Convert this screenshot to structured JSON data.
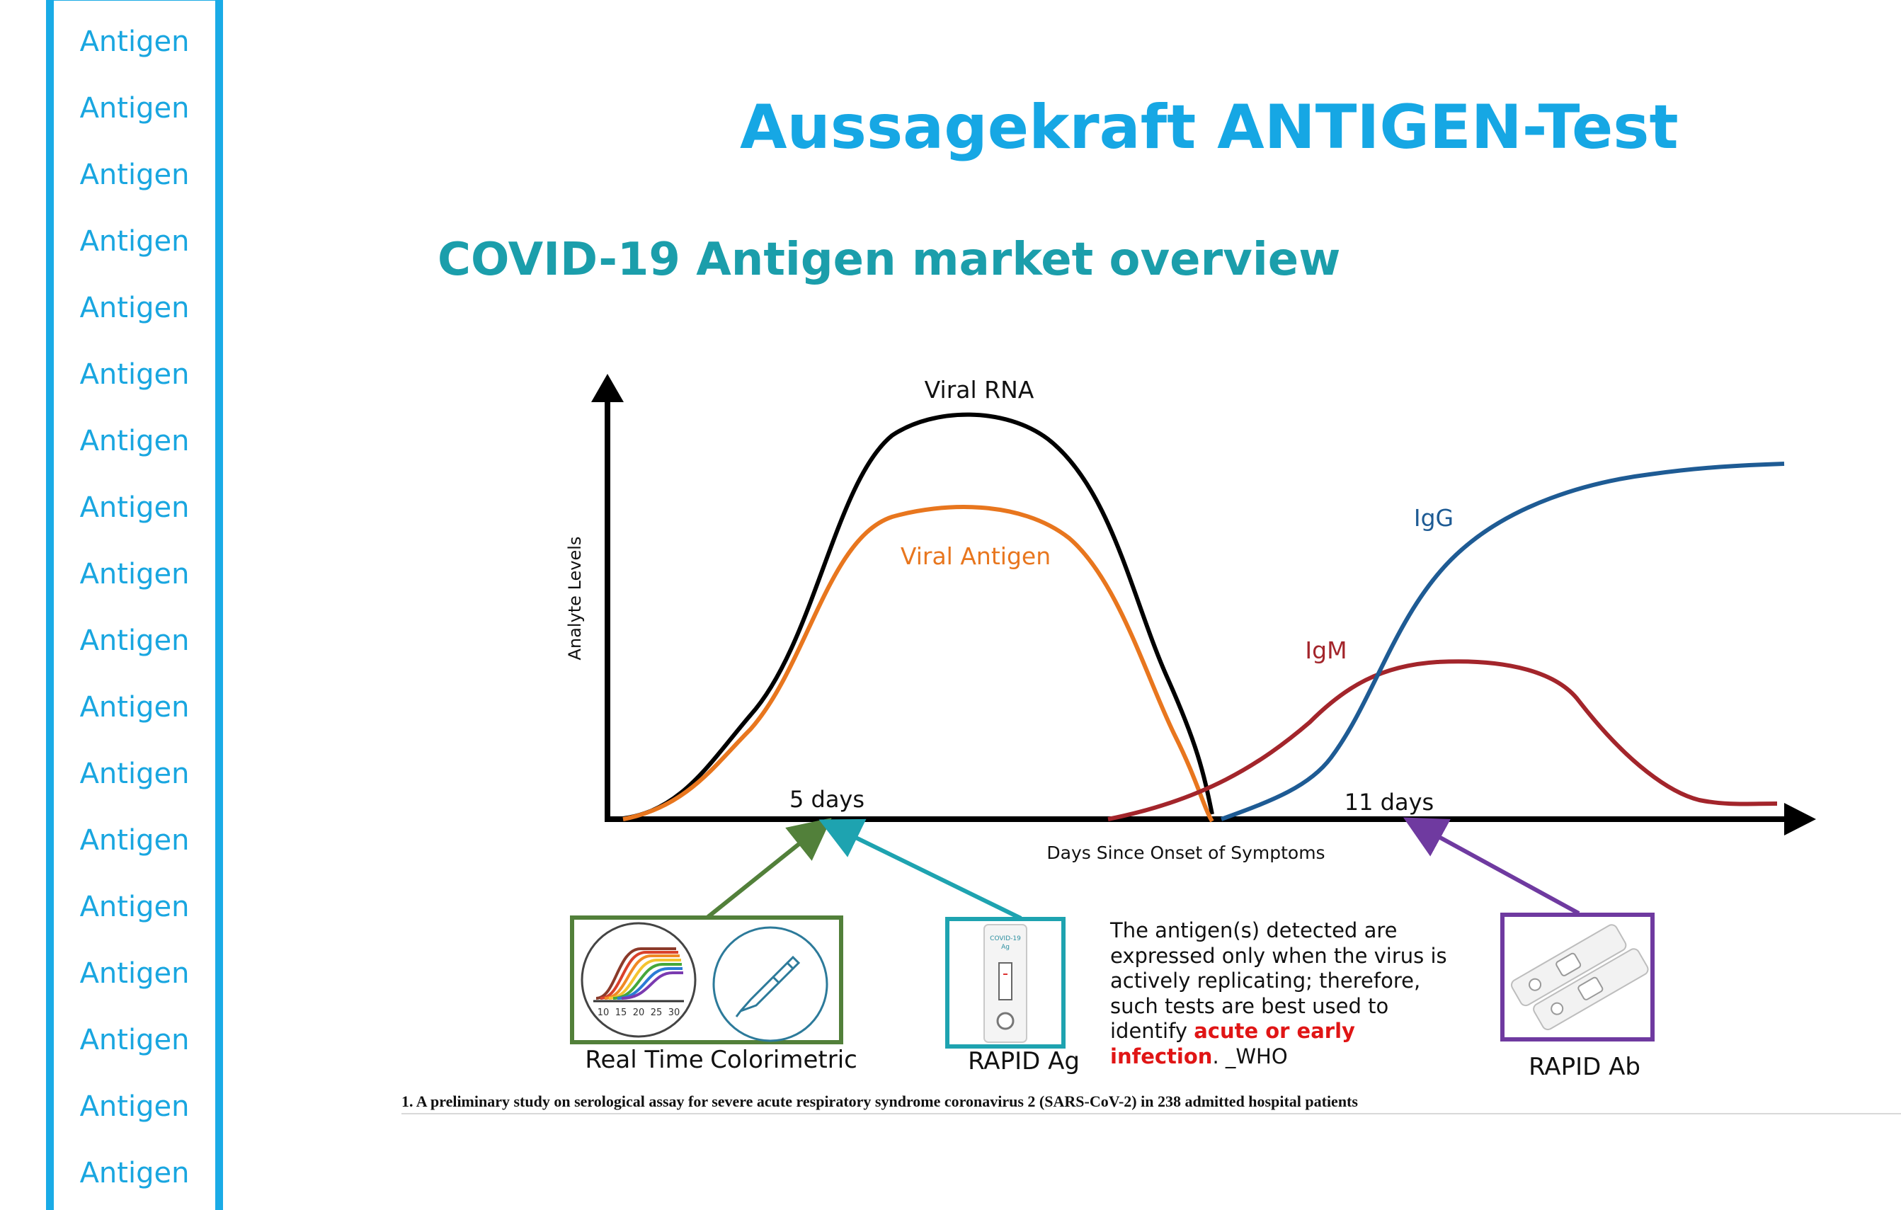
{
  "sidebar": {
    "items": [
      "Antigen",
      "Antigen",
      "Antigen",
      "Antigen",
      "Antigen",
      "Antigen",
      "Antigen",
      "Antigen",
      "Antigen",
      "Antigen",
      "Antigen",
      "Antigen",
      "Antigen",
      "Antigen",
      "Antigen",
      "Antigen",
      "Antigen",
      "Antigen"
    ]
  },
  "title": "Aussagekraft ANTIGEN-Test",
  "subtitle": "COVID-19 Antigen market overview",
  "diagram": {
    "y_axis_label": "Analyte Levels",
    "x_axis_label": "Days Since Onset of Symptoms",
    "curves": {
      "viral_rna": "Viral RNA",
      "viral_antigen": "Viral Antigen",
      "igm": "IgM",
      "igg": "IgG"
    },
    "markers": {
      "day5": "5 days",
      "day11": "11 days"
    },
    "colors": {
      "viral_rna": "#000000",
      "viral_antigen": "#e8761e",
      "igm": "#a3252b",
      "igg": "#1e5b94",
      "real_time_box": "#52803a",
      "rapid_ag_box": "#1ea3b0",
      "rapid_ab_box": "#6f3aa0"
    }
  },
  "products": {
    "real_time": "Real Time",
    "colorimetric": "Colorimetric",
    "rapid_ag": "RAPID Ag",
    "rapid_ab": "RAPID Ab",
    "cassette_label": "COVID-19",
    "cassette_sub": "Ag",
    "pcr_ticks": [
      "10",
      "15",
      "20",
      "25",
      "30"
    ]
  },
  "quote": {
    "text": "The antigen(s) detected are expressed only when the virus is actively replicating; therefore, such tests are best used to identify ",
    "highlight": "acute or early infection",
    "suffix": ". _WHO"
  },
  "footnote": "1. A preliminary study on serological assay for severe acute respiratory syndrome coronavirus 2 (SARS-CoV-2) in 238 admitted hospital patients"
}
